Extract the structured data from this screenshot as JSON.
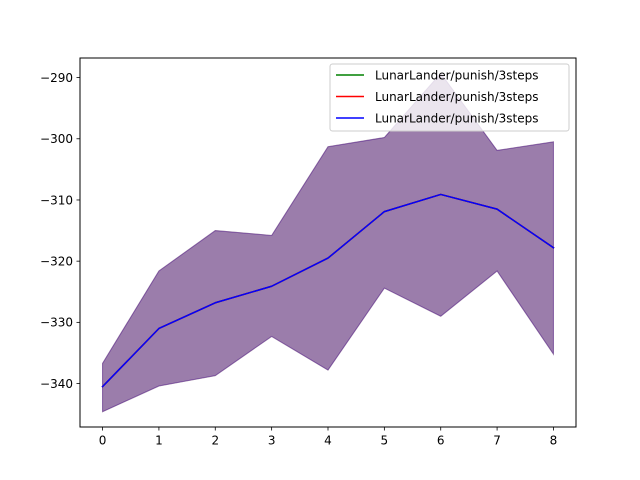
{
  "chart_data": {
    "type": "line",
    "x": [
      0,
      1,
      2,
      3,
      4,
      5,
      6,
      7,
      8
    ],
    "xticks": [
      0,
      1,
      2,
      3,
      4,
      5,
      6,
      7,
      8
    ],
    "yticks": [
      -340,
      -330,
      -320,
      -310,
      -300,
      -290
    ],
    "xlim": [
      -0.4,
      8.4
    ],
    "ylim": [
      -347.1,
      -286.8
    ],
    "grid": false,
    "legend_position": "top-right",
    "series": [
      {
        "name": "LunarLander/punish/3steps",
        "color": "#008000",
        "mean": [
          -340.5,
          -331.0,
          -326.8,
          -324.1,
          -319.5,
          -311.9,
          -309.1,
          -311.5,
          -317.8
        ],
        "upper": [
          -336.7,
          -321.6,
          -315.0,
          -315.8,
          -301.3,
          -299.8,
          -289.3,
          -301.9,
          -300.5
        ],
        "lower": [
          -344.6,
          -340.4,
          -338.7,
          -332.3,
          -337.8,
          -324.4,
          -329.0,
          -321.6,
          -335.2
        ]
      },
      {
        "name": "LunarLander/punish/3steps",
        "color": "#ff0000",
        "mean": [
          -340.5,
          -331.0,
          -326.8,
          -324.1,
          -319.5,
          -311.9,
          -309.1,
          -311.5,
          -317.8
        ],
        "upper": [
          -336.7,
          -321.6,
          -315.0,
          -315.8,
          -301.3,
          -299.8,
          -289.3,
          -301.9,
          -300.5
        ],
        "lower": [
          -344.6,
          -340.4,
          -338.7,
          -332.3,
          -337.8,
          -324.4,
          -329.0,
          -321.6,
          -335.2
        ]
      },
      {
        "name": "LunarLander/punish/3steps",
        "color": "#0000ff",
        "mean": [
          -340.5,
          -331.0,
          -326.8,
          -324.1,
          -319.5,
          -311.9,
          -309.1,
          -311.5,
          -317.8
        ],
        "upper": [
          -336.7,
          -321.6,
          -315.0,
          -315.8,
          -301.3,
          -299.8,
          -289.3,
          -301.9,
          -300.5
        ],
        "lower": [
          -344.6,
          -340.4,
          -338.7,
          -332.3,
          -337.8,
          -324.4,
          -329.0,
          -321.6,
          -335.2
        ]
      }
    ]
  }
}
